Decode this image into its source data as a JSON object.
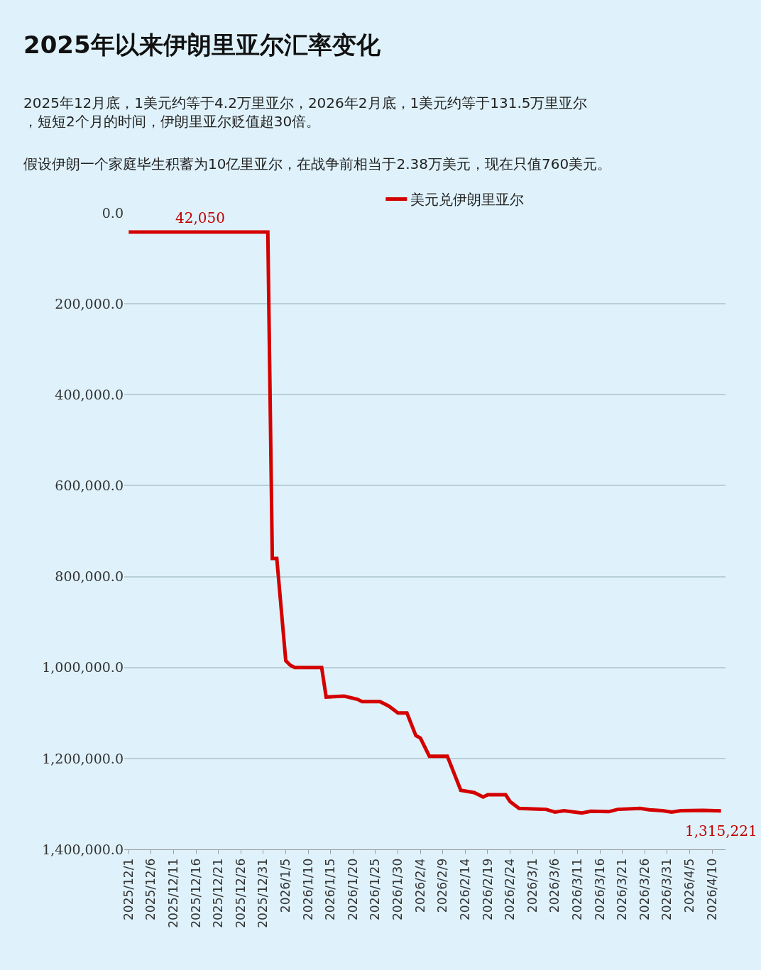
{
  "chart_data": {
    "type": "line",
    "title": "2025年以来伊朗里亚尔汇率变化",
    "subtitle": "2025年12月底，1美元约等于4.2万里亚尔，2026年2月底，1美元约等于131.5万里亚尔，短短2个月的时间，伊朗里亚尔贬值超30倍。",
    "annotations": [
      "假设伊朗一个家庭毕生积蓄为10亿里亚尔，在战争前相当于2.38万美元，现在只值760美元。",
      {
        "text": "42,050",
        "x": "2025-12-17",
        "y": 42050
      },
      {
        "text": "1,315,221",
        "x": "2026-04-12",
        "y": 1315221
      }
    ],
    "x": [
      "2025-12-01",
      "2026-01-01",
      "2026-01-02",
      "2026-01-03",
      "2026-01-05",
      "2026-01-06",
      "2026-01-07",
      "2026-01-13",
      "2026-01-14",
      "2026-01-18",
      "2026-01-21",
      "2026-01-22",
      "2026-01-26",
      "2026-01-28",
      "2026-01-30",
      "2026-02-01",
      "2026-02-03",
      "2026-02-04",
      "2026-02-06",
      "2026-02-10",
      "2026-02-11",
      "2026-02-13",
      "2026-02-16",
      "2026-02-18",
      "2026-02-19",
      "2026-02-23",
      "2026-02-24",
      "2026-02-26",
      "2026-03-04",
      "2026-03-06",
      "2026-03-08",
      "2026-03-12",
      "2026-03-14",
      "2026-03-18",
      "2026-03-20",
      "2026-03-25",
      "2026-03-27",
      "2026-03-30",
      "2026-04-01",
      "2026-04-03",
      "2026-04-08",
      "2026-04-12"
    ],
    "series": [
      {
        "name": "美元兑伊朗里亚尔",
        "color": "#d40000",
        "values": [
          42050,
          42050,
          760000,
          760000,
          985000,
          995000,
          1000000,
          1000000,
          1065000,
          1063000,
          1070000,
          1075000,
          1075000,
          1085000,
          1100000,
          1100000,
          1150000,
          1155000,
          1195000,
          1195000,
          1220000,
          1270000,
          1275000,
          1285000,
          1280000,
          1280000,
          1295000,
          1310000,
          1312000,
          1318000,
          1315000,
          1320000,
          1316000,
          1317000,
          1312000,
          1310000,
          1313000,
          1315000,
          1318000,
          1315000,
          1314000,
          1315221
        ]
      }
    ],
    "xlim": [
      "2025-11-30",
      "2026-04-13"
    ],
    "xticks": [
      {
        "value": "2025-12-01",
        "label": "2025/12/1"
      },
      {
        "value": "2025-12-06",
        "label": "2025/12/6"
      },
      {
        "value": "2025-12-11",
        "label": "2025/12/11"
      },
      {
        "value": "2025-12-16",
        "label": "2025/12/16"
      },
      {
        "value": "2025-12-21",
        "label": "2025/12/21"
      },
      {
        "value": "2025-12-26",
        "label": "2025/12/26"
      },
      {
        "value": "2025-12-31",
        "label": "2025/12/31"
      },
      {
        "value": "2026-01-05",
        "label": "2026/1/5"
      },
      {
        "value": "2026-01-10",
        "label": "2026/1/10"
      },
      {
        "value": "2026-01-15",
        "label": "2026/1/15"
      },
      {
        "value": "2026-01-20",
        "label": "2026/1/20"
      },
      {
        "value": "2026-01-25",
        "label": "2026/1/25"
      },
      {
        "value": "2026-01-30",
        "label": "2026/1/30"
      },
      {
        "value": "2026-02-04",
        "label": "2026/2/4"
      },
      {
        "value": "2026-02-09",
        "label": "2026/2/9"
      },
      {
        "value": "2026-02-14",
        "label": "2026/2/14"
      },
      {
        "value": "2026-02-19",
        "label": "2026/2/19"
      },
      {
        "value": "2026-02-24",
        "label": "2026/2/24"
      },
      {
        "value": "2026-03-01",
        "label": "2026/3/1"
      },
      {
        "value": "2026-03-06",
        "label": "2026/3/6"
      },
      {
        "value": "2026-03-11",
        "label": "2026/3/11"
      },
      {
        "value": "2026-03-16",
        "label": "2026/3/16"
      },
      {
        "value": "2026-03-21",
        "label": "2026/3/21"
      },
      {
        "value": "2026-03-26",
        "label": "2026/3/26"
      },
      {
        "value": "2026-03-31",
        "label": "2026/3/31"
      },
      {
        "value": "2026-04-05",
        "label": "2026/4/5"
      },
      {
        "value": "2026-04-10",
        "label": "2026/4/10"
      }
    ],
    "ylim": [
      1400000,
      0
    ],
    "yticks": [
      {
        "value": 0,
        "label": "0.0"
      },
      {
        "value": 200000,
        "label": "200,000.0"
      },
      {
        "value": 400000,
        "label": "400,000.0"
      },
      {
        "value": 600000,
        "label": "600,000.0"
      },
      {
        "value": 800000,
        "label": "800,000.0"
      },
      {
        "value": 1000000,
        "label": "1,000,000.0"
      },
      {
        "value": 1200000,
        "label": "1,200,000.0"
      },
      {
        "value": 1400000,
        "label": "1,400,000.0"
      }
    ],
    "grid": "y",
    "legend": "top",
    "marker": "none",
    "line_style": "solid"
  }
}
